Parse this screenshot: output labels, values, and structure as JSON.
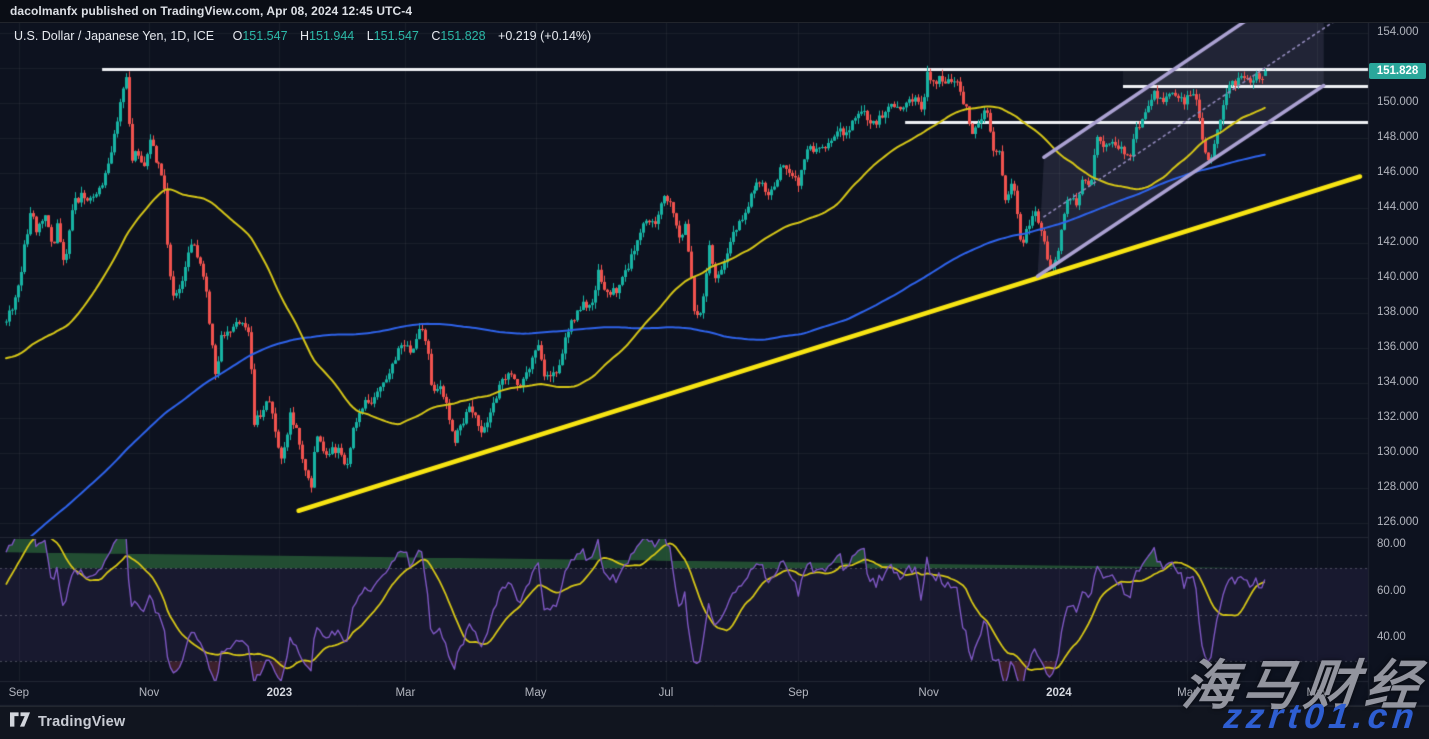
{
  "header": {
    "publish_line": "dacolmanfx published on TradingView.com, Apr 08, 2024 12:45 UTC-4"
  },
  "legend": {
    "symbol_title": "U.S. Dollar / Japanese Yen, 1D, ICE",
    "o_label": "O",
    "o": "151.547",
    "h_label": "H",
    "h": "151.944",
    "l_label": "L",
    "l": "151.547",
    "c_label": "C",
    "c": "151.828",
    "change": "+0.219 (+0.14%)"
  },
  "price_axis": {
    "current_price": "151.828",
    "ticks": [
      {
        "label": "154.000",
        "price": 154
      },
      {
        "label": "150.000",
        "price": 150
      },
      {
        "label": "148.000",
        "price": 148
      },
      {
        "label": "146.000",
        "price": 146
      },
      {
        "label": "144.000",
        "price": 144
      },
      {
        "label": "142.000",
        "price": 142
      },
      {
        "label": "140.000",
        "price": 140
      },
      {
        "label": "138.000",
        "price": 138
      },
      {
        "label": "136.000",
        "price": 136
      },
      {
        "label": "134.000",
        "price": 134
      },
      {
        "label": "132.000",
        "price": 132
      },
      {
        "label": "130.000",
        "price": 130
      },
      {
        "label": "128.000",
        "price": 128
      },
      {
        "label": "126.000",
        "price": 126
      }
    ]
  },
  "time_axis": {
    "ticks": [
      {
        "label": "Sep",
        "cal": 6,
        "year": false
      },
      {
        "label": "Nov",
        "cal": 67,
        "year": false
      },
      {
        "label": "2023",
        "cal": 128,
        "year": true
      },
      {
        "label": "Mar",
        "cal": 187,
        "year": false
      },
      {
        "label": "May",
        "cal": 248,
        "year": false
      },
      {
        "label": "Jul",
        "cal": 309,
        "year": false
      },
      {
        "label": "Sep",
        "cal": 371,
        "year": false
      },
      {
        "label": "Nov",
        "cal": 432,
        "year": false
      },
      {
        "label": "2024",
        "cal": 493,
        "year": true
      },
      {
        "label": "Mar",
        "cal": 553,
        "year": false
      },
      {
        "label": "May",
        "cal": 614,
        "year": false
      }
    ]
  },
  "rsi_axis": {
    "ticks": [
      {
        "label": "80.00",
        "value": 80
      },
      {
        "label": "60.00",
        "value": 60
      },
      {
        "label": "40.00",
        "value": 40
      }
    ]
  },
  "footer": {
    "brand": "TradingView"
  },
  "watermark": {
    "line1": "海马财经",
    "line2": "zzrt01.cn"
  },
  "colors": {
    "background": "#0d121f",
    "topbar": "#0a0d15",
    "footer_bg": "#11151f",
    "grid": "rgba(255,255,255,0.05)",
    "separator": "rgba(255,255,255,0.09)",
    "up": "#17b3a3",
    "down": "#f0524e",
    "sma50": "#d2c318",
    "sma200": "#2e62e8",
    "trendline": "#f8e513",
    "channel": "#aba1d2",
    "channel_fill": "rgba(171,161,210,0.13)",
    "channel_mid": "#8f87b8",
    "hline": "#eef0f4",
    "zone_fill": "rgba(255,255,255,0.055)",
    "rsi": "#7e57c2",
    "rsi_ma": "#d2c318",
    "rsi_band": "rgba(126,87,194,0.10)",
    "rsi_level": "rgba(186,189,200,0.32)",
    "rsi_over_fill": "rgba(40,92,55,0.80)",
    "rsi_under_fill": "rgba(150,60,70,0.35)",
    "axis_text": "#b2b5be",
    "price_badge_bg": "#2aa79b"
  },
  "chart_data": {
    "type": "candlestick",
    "title": "U.S. Dollar / Japanese Yen, 1D, ICE",
    "timeframe": "1D",
    "visible_range": "late Aug 2022 to Apr 08 2024",
    "ohlc_last": {
      "open": 151.547,
      "high": 151.944,
      "low": 151.547,
      "close": 151.828,
      "change": "+0.219 (+0.14%)"
    },
    "ylim": [
      125.5,
      154.6
    ],
    "price_grid_step": 2,
    "price_keypoints": [
      [
        -295,
        114.2
      ],
      [
        -265,
        113.5
      ],
      [
        -235,
        113.9
      ],
      [
        -205,
        114.9
      ],
      [
        -180,
        115.2
      ],
      [
        -162,
        116.2
      ],
      [
        -151,
        120.8
      ],
      [
        -144,
        123.9
      ],
      [
        -131,
        126.2
      ],
      [
        -120,
        130.6
      ],
      [
        -110,
        128.8
      ],
      [
        -100,
        127.2
      ],
      [
        -93,
        129.7
      ],
      [
        -85,
        134.2
      ],
      [
        -75,
        134.7
      ],
      [
        -68,
        136.3
      ],
      [
        -60,
        135.9
      ],
      [
        -53,
        138.9
      ],
      [
        -46,
        137.9
      ],
      [
        -40,
        135.8
      ],
      [
        -33,
        132.9
      ],
      [
        -25,
        131.7
      ],
      [
        -18,
        133.5
      ],
      [
        -10,
        135.0
      ],
      [
        -5,
        136.7
      ],
      [
        0,
        137.5
      ],
      [
        4,
        138.8
      ],
      [
        6,
        139.6
      ],
      [
        9,
        142.2
      ],
      [
        12,
        144.0
      ],
      [
        14,
        142.4
      ],
      [
        18,
        143.7
      ],
      [
        22,
        141.8
      ],
      [
        24,
        143.5
      ],
      [
        27,
        140.4
      ],
      [
        31,
        144.2
      ],
      [
        35,
        144.7
      ],
      [
        40,
        144.6
      ],
      [
        46,
        145.7
      ],
      [
        50,
        147.7
      ],
      [
        53,
        149.9
      ],
      [
        56,
        151.6
      ],
      [
        58,
        147.6
      ],
      [
        59,
        146.2
      ],
      [
        60,
        147.4
      ],
      [
        64,
        146.4
      ],
      [
        68,
        148.2
      ],
      [
        70,
        146.8
      ],
      [
        74,
        145.7
      ],
      [
        76,
        141.0
      ],
      [
        78,
        138.9
      ],
      [
        81,
        139.2
      ],
      [
        84,
        140.5
      ],
      [
        87,
        142.1
      ],
      [
        91,
        141.0
      ],
      [
        94,
        139.0
      ],
      [
        98,
        134.3
      ],
      [
        101,
        136.7
      ],
      [
        105,
        136.9
      ],
      [
        109,
        137.4
      ],
      [
        111,
        137.6
      ],
      [
        114,
        136.6
      ],
      [
        116,
        131.8
      ],
      [
        120,
        132.4
      ],
      [
        123,
        133.1
      ],
      [
        126,
        131.1
      ],
      [
        129,
        129.8
      ],
      [
        133,
        132.1
      ],
      [
        136,
        131.3
      ],
      [
        140,
        128.9
      ],
      [
        143,
        127.9
      ],
      [
        145,
        131.1
      ],
      [
        149,
        129.9
      ],
      [
        152,
        130.1
      ],
      [
        156,
        130.3
      ],
      [
        159,
        128.9
      ],
      [
        162,
        131.2
      ],
      [
        166,
        132.7
      ],
      [
        172,
        133.1
      ],
      [
        176,
        134.2
      ],
      [
        180,
        134.7
      ],
      [
        185,
        136.3
      ],
      [
        190,
        135.9
      ],
      [
        194,
        137.2
      ],
      [
        197,
        135.9
      ],
      [
        199,
        133.6
      ],
      [
        203,
        134.0
      ],
      [
        206,
        132.6
      ],
      [
        210,
        130.8
      ],
      [
        213,
        131.5
      ],
      [
        217,
        132.9
      ],
      [
        222,
        131.3
      ],
      [
        226,
        132.1
      ],
      [
        230,
        133.5
      ],
      [
        236,
        134.8
      ],
      [
        241,
        133.8
      ],
      [
        246,
        135.1
      ],
      [
        249,
        136.4
      ],
      [
        252,
        134.3
      ],
      [
        258,
        134.6
      ],
      [
        261,
        136.0
      ],
      [
        264,
        137.4
      ],
      [
        270,
        138.6
      ],
      [
        274,
        138.2
      ],
      [
        277,
        140.3
      ],
      [
        280,
        139.4
      ],
      [
        285,
        139.2
      ],
      [
        289,
        140.0
      ],
      [
        294,
        141.6
      ],
      [
        299,
        143.5
      ],
      [
        304,
        143.3
      ],
      [
        308,
        144.7
      ],
      [
        311,
        144.3
      ],
      [
        315,
        142.1
      ],
      [
        318,
        143.2
      ],
      [
        322,
        138.2
      ],
      [
        325,
        137.9
      ],
      [
        329,
        141.8
      ],
      [
        332,
        140.0
      ],
      [
        336,
        141.1
      ],
      [
        340,
        142.6
      ],
      [
        345,
        143.3
      ],
      [
        349,
        144.9
      ],
      [
        353,
        145.5
      ],
      [
        358,
        144.7
      ],
      [
        362,
        146.1
      ],
      [
        366,
        146.4
      ],
      [
        371,
        145.5
      ],
      [
        376,
        147.6
      ],
      [
        380,
        147.1
      ],
      [
        385,
        147.8
      ],
      [
        390,
        148.3
      ],
      [
        395,
        148.5
      ],
      [
        399,
        149.4
      ],
      [
        401,
        149.8
      ],
      [
        403,
        149.0
      ],
      [
        407,
        148.7
      ],
      [
        412,
        149.7
      ],
      [
        417,
        149.9
      ],
      [
        421,
        149.8
      ],
      [
        426,
        150.4
      ],
      [
        429,
        149.5
      ],
      [
        431,
        151.7
      ],
      [
        435,
        151.2
      ],
      [
        438,
        151.4
      ],
      [
        442,
        151.3
      ],
      [
        444,
        151.5
      ],
      [
        447,
        150.4
      ],
      [
        450,
        149.5
      ],
      [
        452,
        148.4
      ],
      [
        456,
        149.3
      ],
      [
        459,
        149.4
      ],
      [
        462,
        147.2
      ],
      [
        465,
        147.1
      ],
      [
        468,
        144.3
      ],
      [
        471,
        145.9
      ],
      [
        475,
        141.9
      ],
      [
        478,
        142.8
      ],
      [
        482,
        143.8
      ],
      [
        485,
        142.4
      ],
      [
        489,
        140.4
      ],
      [
        492,
        141.0
      ],
      [
        495,
        143.3
      ],
      [
        497,
        144.6
      ],
      [
        501,
        144.2
      ],
      [
        504,
        145.7
      ],
      [
        508,
        145.3
      ],
      [
        511,
        148.1
      ],
      [
        515,
        147.5
      ],
      [
        518,
        147.9
      ],
      [
        522,
        147.5
      ],
      [
        526,
        146.8
      ],
      [
        529,
        148.4
      ],
      [
        533,
        149.4
      ],
      [
        537,
        150.6
      ],
      [
        541,
        150.2
      ],
      [
        545,
        150.5
      ],
      [
        548,
        150.4
      ],
      [
        551,
        150.0
      ],
      [
        554,
        150.5
      ],
      [
        557,
        150.3
      ],
      [
        561,
        147.1
      ],
      [
        564,
        146.9
      ],
      [
        568,
        148.9
      ],
      [
        572,
        150.9
      ],
      [
        575,
        151.2
      ],
      [
        578,
        151.4
      ],
      [
        580,
        151.4
      ],
      [
        583,
        151.3
      ],
      [
        585,
        151.7
      ],
      [
        588,
        151.4
      ],
      [
        590,
        151.83
      ]
    ],
    "indicators": {
      "sma_fast_period": 50,
      "sma_slow_period": 200,
      "rsi_period": 14,
      "rsi_ma_period": 14,
      "rsi_levels": [
        70,
        50,
        30
      ]
    },
    "drawings": {
      "hlines": [
        {
          "price": 151.95,
          "start_cal": 45
        },
        {
          "price": 150.95,
          "start_cal": 523
        },
        {
          "price": 148.9,
          "start_cal": 421
        }
      ],
      "zone": {
        "top": 151.95,
        "bottom": 150.95,
        "start_cal": 523
      },
      "trendline": {
        "p1": [
          137,
          126.7
        ],
        "p2": [
          634,
          145.8
        ]
      },
      "channel": {
        "lower": [
          [
            483,
            140.1
          ],
          [
            617,
            151.0
          ]
        ],
        "upper_start": [
          486,
          146.9
        ],
        "mid_start": [
          486,
          143.5
        ]
      }
    }
  }
}
